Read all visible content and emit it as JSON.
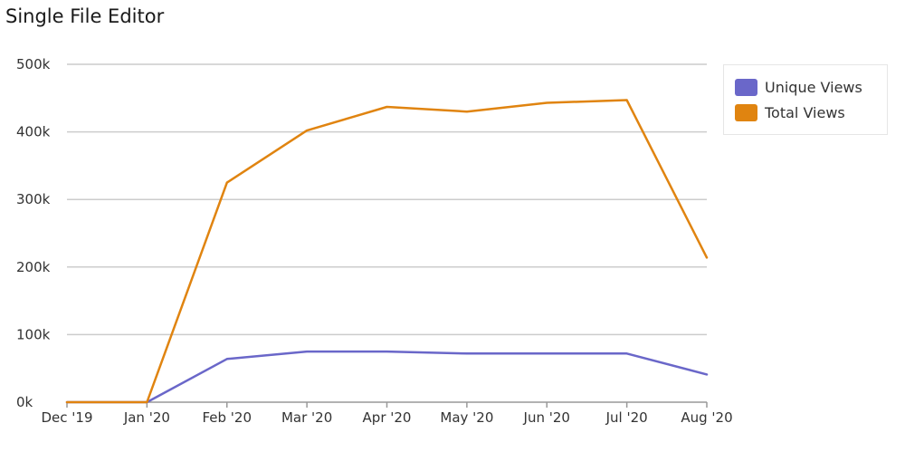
{
  "chart_title": "Single File Editor",
  "colors": {
    "unique": "#6a67c9",
    "total": "#e08410",
    "grid": "#cccccc",
    "axis": "#999999"
  },
  "chart_data": {
    "type": "line",
    "title": "Single File Editor",
    "xlabel": "",
    "ylabel": "",
    "categories": [
      "Dec '19",
      "Jan '20",
      "Feb '20",
      "Mar '20",
      "Apr '20",
      "May '20",
      "Jun '20",
      "Jul '20",
      "Aug '20"
    ],
    "yticks": [
      "0k",
      "100k",
      "200k",
      "300k",
      "400k",
      "500k"
    ],
    "ylim": [
      0,
      500000
    ],
    "grid": true,
    "legend_position": "right",
    "series": [
      {
        "name": "Unique Views",
        "color": "#6a67c9",
        "values": [
          0,
          0,
          64000,
          75000,
          75000,
          72000,
          72000,
          72000,
          41000
        ]
      },
      {
        "name": "Total Views",
        "color": "#e08410",
        "values": [
          0,
          0,
          325000,
          402000,
          437000,
          430000,
          443000,
          447000,
          214000
        ]
      }
    ]
  }
}
